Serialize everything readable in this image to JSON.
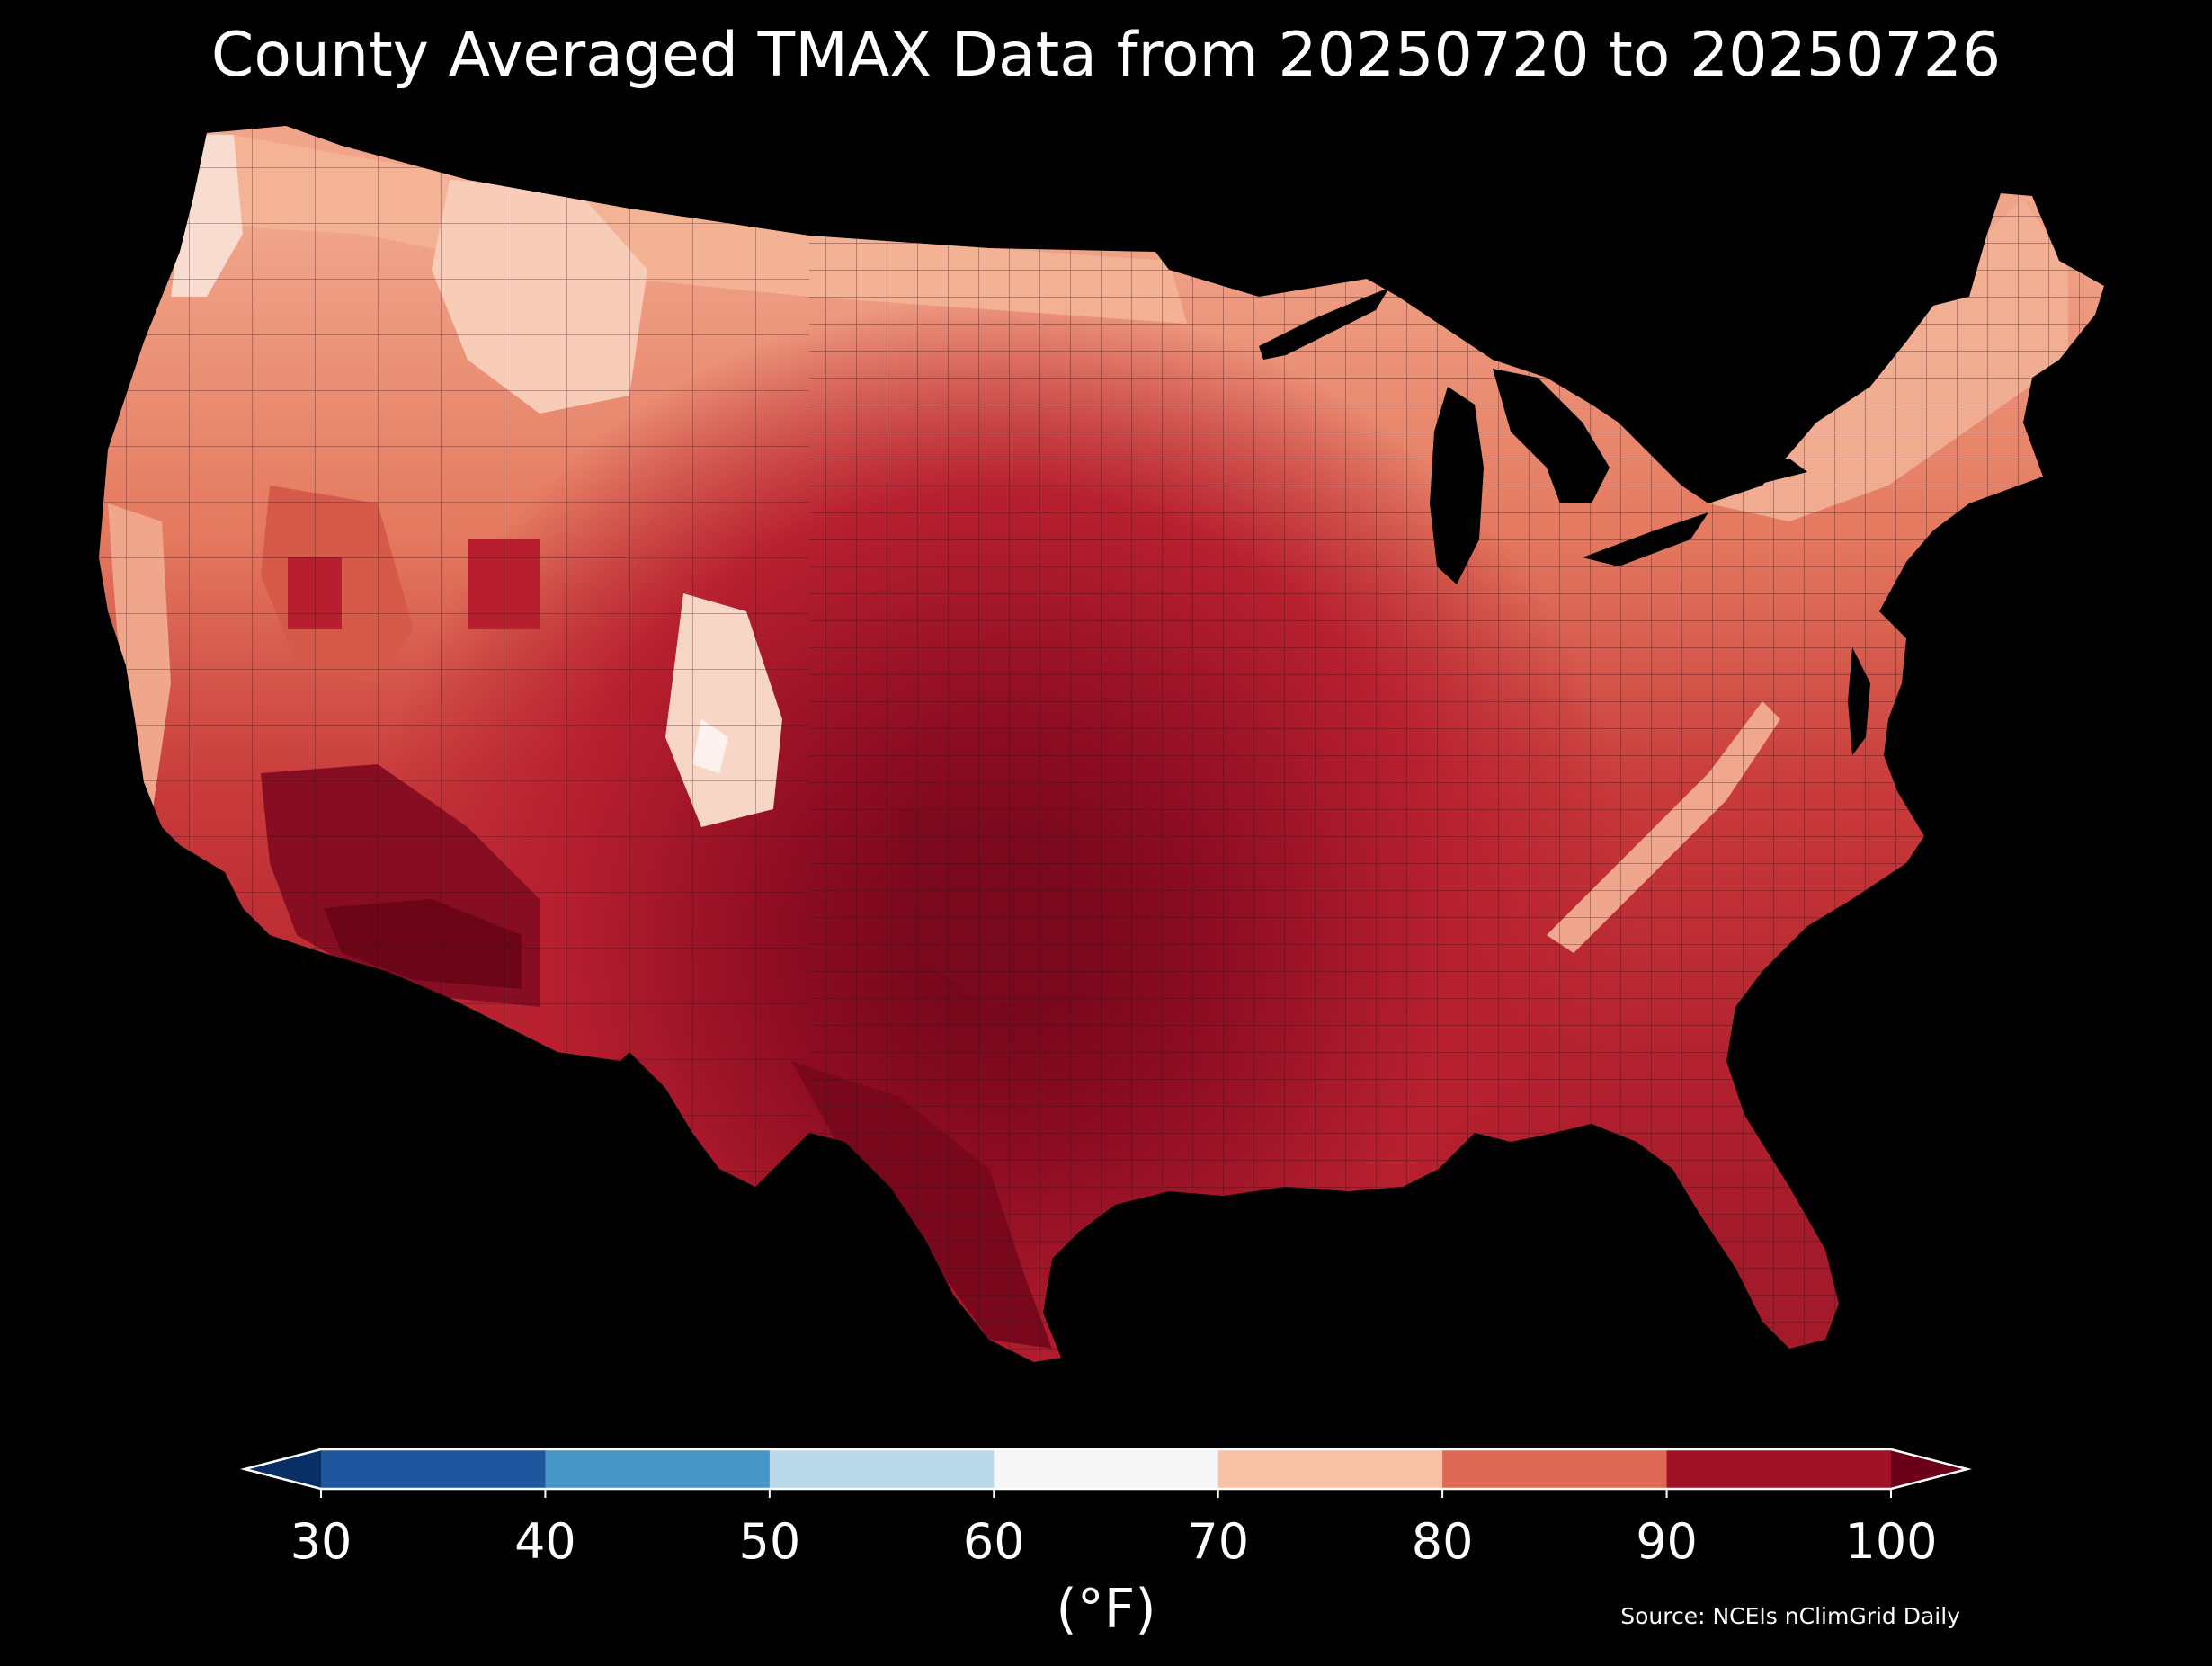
{
  "title": "County Averaged TMAX Data from 20250720 to 20250726",
  "colorbar": {
    "ticks": [
      "30",
      "40",
      "50",
      "60",
      "70",
      "80",
      "90",
      "100"
    ],
    "unit": "(°F)",
    "extend": "both",
    "bins": [
      {
        "range": [
          30,
          40
        ],
        "color": "#1f569e"
      },
      {
        "range": [
          40,
          50
        ],
        "color": "#4795c5"
      },
      {
        "range": [
          50,
          60
        ],
        "color": "#b9d8ea"
      },
      {
        "range": [
          60,
          70
        ],
        "color": "#f6f6f6"
      },
      {
        "range": [
          70,
          80
        ],
        "color": "#f8c2a6"
      },
      {
        "range": [
          80,
          90
        ],
        "color": "#dd6853"
      },
      {
        "range": [
          90,
          100
        ],
        "color": "#a01226"
      }
    ],
    "under_color": "#0a2f66",
    "over_color": "#6b0019"
  },
  "source": "Source: NCEIs nClimGrid Daily",
  "map": {
    "region": "Contiguous United States",
    "variable": "TMAX",
    "background": "#000000",
    "region_colors": {
      "northern_tier": "#f4b298",
      "great_plains_north": "#e6836a",
      "midwest": "#dd6a54",
      "southern_plains": "#9e1a2a",
      "texas_oklahoma_core": "#7b0a1e",
      "southeast": "#b9212f",
      "southwest_desert": "#800c20",
      "rockies_high": "#f6d2c0",
      "pacific_coast": "#e88a70",
      "appalachian_ridge": "#f3b092"
    }
  }
}
